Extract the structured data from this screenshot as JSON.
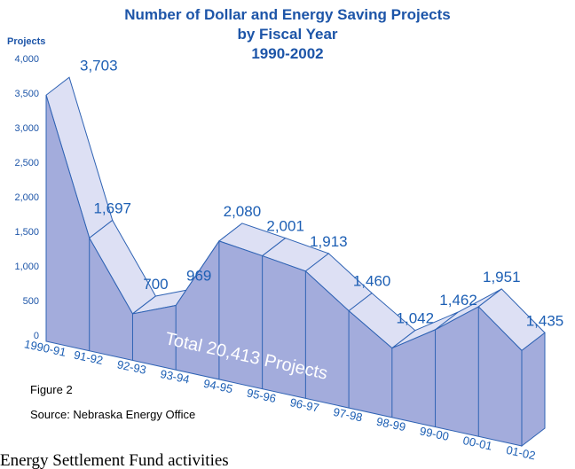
{
  "chart_data": {
    "type": "area3d",
    "title": [
      "Number of Dollar and Energy Saving Projects",
      "by Fiscal Year",
      "1990-2002"
    ],
    "y_label": "Projects",
    "categories": [
      "1990-91",
      "91-92",
      "92-93",
      "93-94",
      "94-95",
      "95-96",
      "96-97",
      "97-98",
      "98-99",
      "99-00",
      "00-01",
      "01-02"
    ],
    "values": [
      3703,
      1697,
      700,
      969,
      2080,
      2001,
      1913,
      1460,
      1042,
      1462,
      1951,
      1435
    ],
    "value_labels": [
      "3,703",
      "1,697",
      "700",
      "969",
      "2,080",
      "2,001",
      "1,913",
      "1,460",
      "1,042",
      "1,462",
      "1,951",
      "1,435"
    ],
    "ylim": [
      0,
      4000
    ],
    "yticks": [
      0,
      500,
      {
        "value": 1000,
        "label": "1,000"
      },
      {
        "value": 1500,
        "label": "1,500"
      },
      {
        "value": 2000,
        "label": "2,000"
      },
      {
        "value": 2500,
        "label": "2,500"
      },
      {
        "value": 3000,
        "label": "3,000"
      },
      {
        "value": 3500,
        "label": "3,500"
      },
      {
        "value": 4000,
        "label": "4,000"
      }
    ],
    "annotation": "Total 20,413 Projects",
    "figure_label": "Figure 2",
    "source": "Source: Nebraska Energy Office",
    "caption": "Energy Settlement Fund activities",
    "front_color": "#a3acdc",
    "top_color": "#dde0f4",
    "line_color": "#2f63b4"
  }
}
